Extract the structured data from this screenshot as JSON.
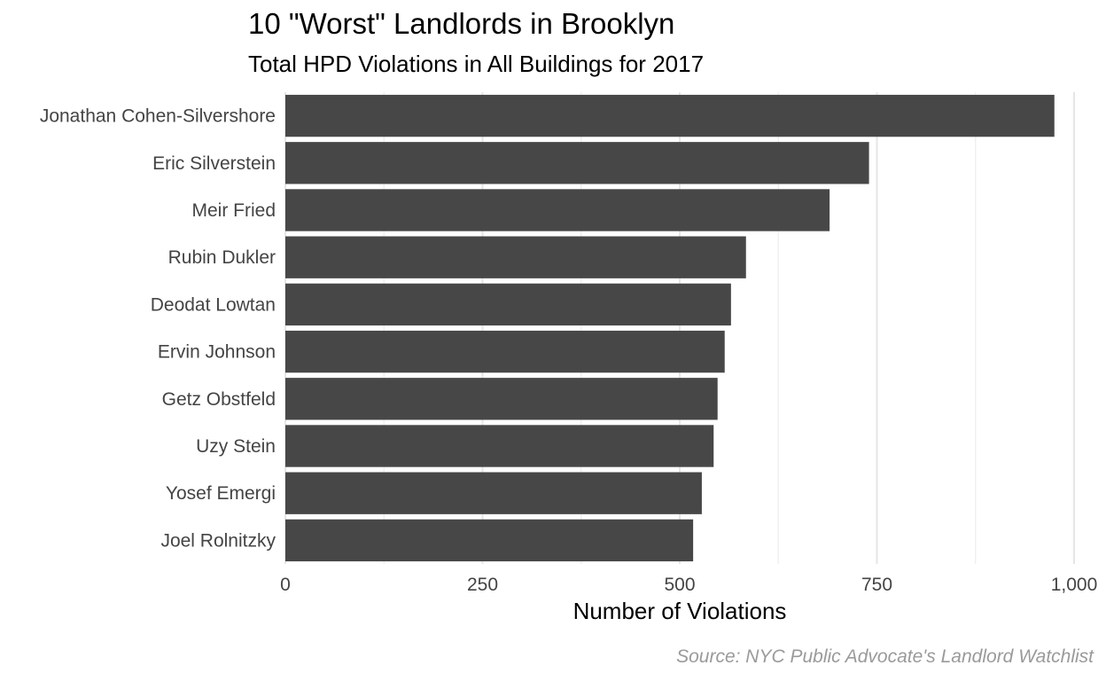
{
  "chart_data": {
    "type": "bar",
    "orientation": "horizontal",
    "title": "10 \"Worst\" Landlords in Brooklyn",
    "subtitle": "Total HPD Violations in All Buildings for 2017",
    "caption": "Source: NYC Public Advocate's Landlord Watchlist",
    "xlabel": "Number of Violations",
    "ylabel": "",
    "categories": [
      "Jonathan Cohen-Silvershore",
      "Eric Silverstein",
      "Meir Fried",
      "Rubin Dukler",
      "Deodat Lowtan",
      "Ervin Johnson",
      "Getz Obstfeld",
      "Uzy Stein",
      "Yosef Emergi",
      "Joel Rolnitzky"
    ],
    "values": [
      975,
      740,
      690,
      584,
      565,
      557,
      548,
      543,
      528,
      517
    ],
    "xlim": [
      0,
      1000
    ],
    "x_ticks": [
      0,
      250,
      500,
      750,
      1000
    ],
    "x_tick_labels": [
      "0",
      "250",
      "500",
      "750",
      "1,000"
    ],
    "grid": true,
    "legend": "none",
    "bar_color": "#474747",
    "grid_color": "#e6e6e6"
  }
}
